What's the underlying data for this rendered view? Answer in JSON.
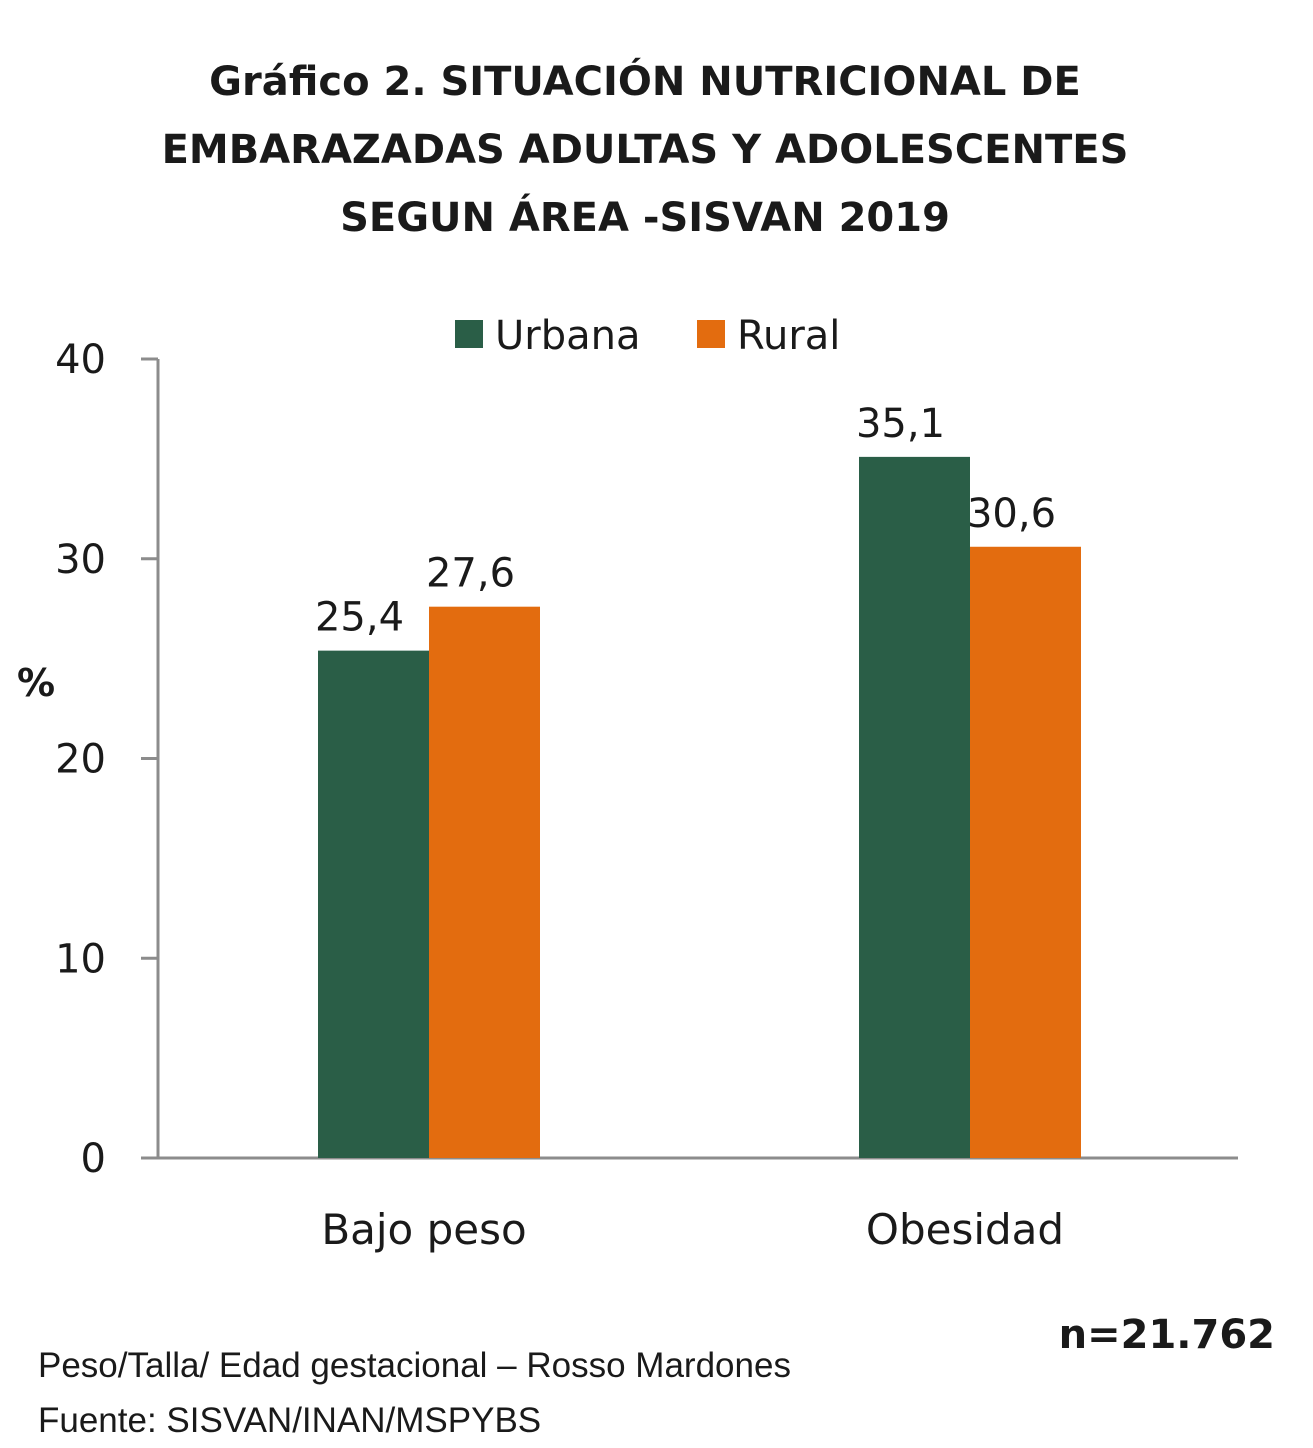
{
  "chart_data": {
    "type": "bar",
    "title_lines": [
      "Gráfico 2. SITUACIÓN NUTRICIONAL DE",
      "EMBARAZADAS ADULTAS Y ADOLESCENTES",
      "SEGUN ÁREA -SISVAN 2019"
    ],
    "ylabel": "%",
    "xlabel": "",
    "ylim": [
      0,
      40
    ],
    "yticks": [
      0,
      10,
      20,
      30,
      40
    ],
    "categories": [
      "Bajo peso",
      "Obesidad"
    ],
    "series": [
      {
        "name": "Urbana",
        "values": [
          25.4,
          35.1
        ],
        "labels": [
          "25,4",
          "35,1"
        ],
        "color": "#2a5e47"
      },
      {
        "name": "Rural",
        "values": [
          27.6,
          30.6
        ],
        "labels": [
          "27,6",
          "30,6"
        ],
        "color": "#e36c0f"
      }
    ],
    "legend_position": "top-center",
    "grid": false
  },
  "annotations": {
    "sample_size": "n=21.762",
    "method_note": "Peso/Talla/ Edad gestacional – Rosso Mardones",
    "source_note": "Fuente: SISVAN/INAN/MSPYBS"
  }
}
